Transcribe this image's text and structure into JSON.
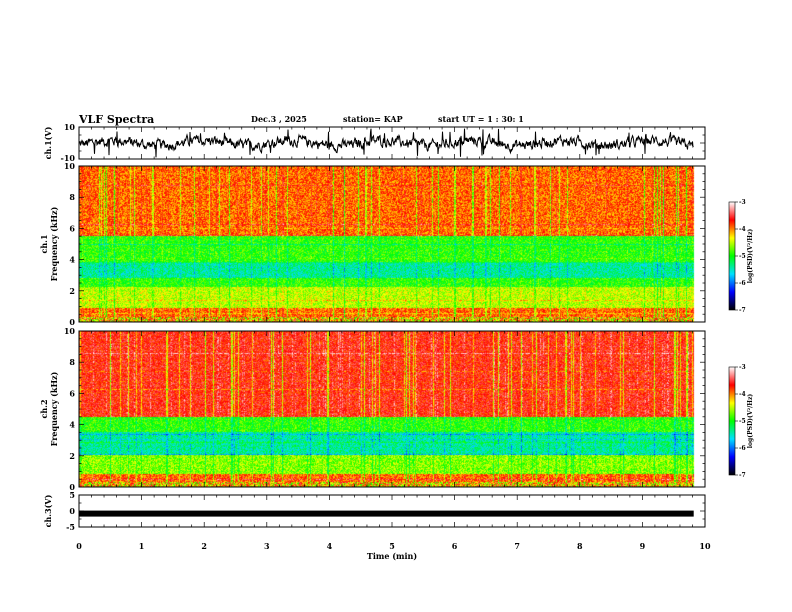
{
  "header": {
    "title": "VLF Spectra",
    "date": "Dec.3 , 2025",
    "station": "station= KAP",
    "start_time": "start UT = 1 : 30: 1"
  },
  "chart_data": [
    {
      "type": "line",
      "name": "ch1-voltage",
      "ylabel": "ch.1(V)",
      "ylim": [
        -10,
        10
      ],
      "ytick_labels": [
        "-10",
        "10"
      ],
      "xlim": [
        0,
        10
      ],
      "series_end_min": 9.82,
      "mean": 0,
      "amplitude_range": [
        -6,
        6
      ],
      "color": "#000000"
    },
    {
      "type": "heatmap",
      "name": "ch1-spectrogram",
      "ylabel_top": "ch.1",
      "ylabel": "Frequency (kHz)",
      "ylim": [
        0,
        10
      ],
      "ytick_labels": [
        "0",
        "2",
        "4",
        "6",
        "8",
        "10"
      ],
      "xlim": [
        0,
        10
      ],
      "data_end_min": 9.82,
      "colorbar": {
        "label": "log(PSD)(V²/Hz)",
        "range": [
          -7,
          -3
        ],
        "tick_labels": [
          "-7",
          "-6",
          "-5",
          "-4",
          "-3"
        ],
        "colors": [
          "#000000",
          "#0000ff",
          "#00e0ff",
          "#00ff00",
          "#ffff00",
          "#ff0000",
          "#ffffff"
        ]
      },
      "bands_khz": [
        {
          "from": 0,
          "to": 0.9,
          "level": "red-yellow"
        },
        {
          "from": 0.9,
          "to": 2.2,
          "level": "yellow-green"
        },
        {
          "from": 2.2,
          "to": 2.8,
          "level": "green"
        },
        {
          "from": 2.8,
          "to": 3.8,
          "level": "cyan-blue"
        },
        {
          "from": 3.8,
          "to": 5.5,
          "level": "green"
        },
        {
          "from": 5.5,
          "to": 10,
          "level": "red-yellow"
        }
      ]
    },
    {
      "type": "heatmap",
      "name": "ch2-spectrogram",
      "ylabel_top": "ch.2",
      "ylabel": "Frequency (kHz)",
      "ylim": [
        0,
        10
      ],
      "ytick_labels": [
        "0",
        "2",
        "4",
        "6",
        "8",
        "10"
      ],
      "xlim": [
        0,
        10
      ],
      "data_end_min": 9.82,
      "colorbar": {
        "label": "log(PSD)(V²/Hz)",
        "range": [
          -7,
          -3
        ],
        "tick_labels": [
          "-7",
          "-6",
          "-5",
          "-4",
          "-3"
        ],
        "colors": [
          "#000000",
          "#0000ff",
          "#00e0ff",
          "#00ff00",
          "#ffff00",
          "#ff0000",
          "#ffffff"
        ]
      },
      "bands_khz": [
        {
          "from": 0,
          "to": 0.8,
          "level": "red-yellow"
        },
        {
          "from": 0.8,
          "to": 2.0,
          "level": "green-yellow"
        },
        {
          "from": 2.0,
          "to": 3.5,
          "level": "cyan-blue"
        },
        {
          "from": 3.5,
          "to": 4.5,
          "level": "green"
        },
        {
          "from": 4.5,
          "to": 10,
          "level": "red"
        }
      ]
    },
    {
      "type": "line",
      "name": "ch3-voltage",
      "ylabel": "ch.3(V)",
      "ylim": [
        -5,
        5
      ],
      "ytick_labels": [
        "-5",
        "0",
        "5"
      ],
      "xlim": [
        0,
        10
      ],
      "series_end_min": 9.82,
      "level": -0.8,
      "color": "#000000"
    }
  ],
  "x_axis": {
    "label": "Time (min)",
    "tick_labels": [
      "0",
      "1",
      "2",
      "3",
      "4",
      "5",
      "6",
      "7",
      "8",
      "9",
      "10"
    ],
    "range": [
      0,
      10
    ]
  }
}
